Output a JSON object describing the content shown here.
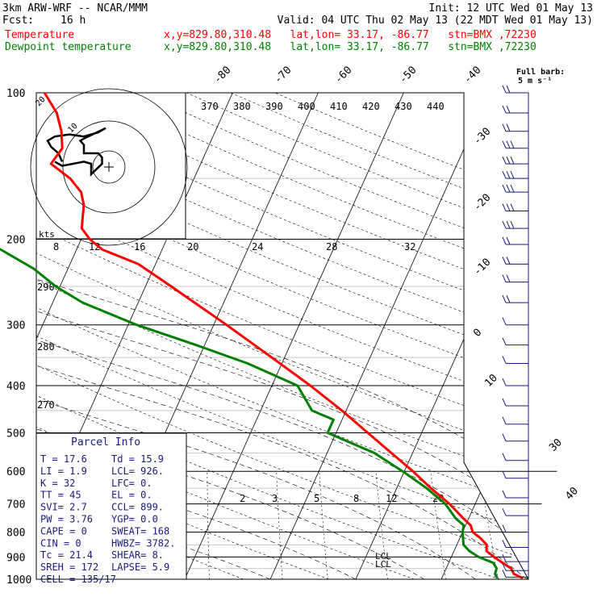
{
  "header": {
    "title": "3km ARW-WRF -- NCAR/MMM",
    "fcst_label": "Fcst:",
    "fcst_value": "16 h",
    "init": "Init: 12 UTC Wed 01 May 13",
    "valid": "Valid: 04 UTC Thu 02 May 13 (22 MDT Wed 01 May 13)",
    "series": [
      {
        "name": "Temperature",
        "info": "x,y=829.80,310.48   lat,lon= 33.17, -86.77   stn=BMX ,72230",
        "color": "#ff0000"
      },
      {
        "name": "Dewpoint temperature",
        "info": "x,y=829.80,310.48   lat,lon= 33.17, -86.77   stn=BMX ,72230",
        "color": "#008000"
      }
    ]
  },
  "barb_key": {
    "title": "Full barb:",
    "value": "5 m s⁻¹"
  },
  "hodograph": {
    "unit_label": "kts",
    "tick_labels": [
      "8",
      "12",
      "16",
      "20",
      "24",
      "28",
      "32"
    ],
    "ring_labels": [
      "10",
      "20"
    ]
  },
  "theta_labels": [
    "370",
    "380",
    "390",
    "400",
    "410",
    "420",
    "430",
    "440"
  ],
  "mixing_ratio_labels": [
    "2",
    "3",
    "5",
    "8",
    "12",
    "20"
  ],
  "theta_e_labels": [
    "290",
    "280",
    "270"
  ],
  "isotherm_labels": [
    "-80",
    "-70",
    "-60",
    "-50",
    "-40",
    "-30",
    "-20",
    "-10",
    "0",
    "10",
    "30",
    "40"
  ],
  "lcl_markers": [
    "LCL",
    "LCL"
  ],
  "parcel_info": {
    "title": "Parcel Info",
    "rows": [
      [
        "T  =     17.6",
        "Td =   15.9"
      ],
      [
        "LI =      1.9",
        "LCL=   926."
      ],
      [
        "K  =       32",
        "LFC=     0."
      ],
      [
        "TT =       45",
        "EL =     0."
      ],
      [
        "SVI=      2.7",
        "CCL=   899."
      ],
      [
        "PW =     3.76",
        "YGP=    0.0"
      ],
      [
        "CAPE =      0",
        "SWEAT=  168"
      ],
      [
        "CIN  =      0",
        "HWBZ= 3782."
      ],
      [
        "Tc =     21.4",
        "SHEAR=   8."
      ],
      [
        "SREH =    172",
        "LAPSE=  5.9"
      ],
      [
        "CELL = 135/17",
        ""
      ]
    ]
  },
  "chart_data": {
    "type": "line",
    "title": "",
    "ylabel": "",
    "xlabel": "",
    "y_scale": "log",
    "ylim": [
      1000,
      100
    ],
    "pressure_levels": [
      100,
      200,
      300,
      400,
      500,
      600,
      700,
      800,
      900,
      1000
    ],
    "series": [
      {
        "name": "Temperature",
        "color": "#ff0000",
        "points": [
          [
            995,
            19.5
          ],
          [
            975,
            18.2
          ],
          [
            950,
            17.6
          ],
          [
            925,
            16.3
          ],
          [
            900,
            15.0
          ],
          [
            875,
            13.8
          ],
          [
            850,
            13.5
          ],
          [
            825,
            12.5
          ],
          [
            800,
            11.2
          ],
          [
            775,
            10.6
          ],
          [
            750,
            9.4
          ],
          [
            700,
            7.0
          ],
          [
            650,
            4.0
          ],
          [
            600,
            1.0
          ],
          [
            550,
            -2.5
          ],
          [
            500,
            -6.3
          ],
          [
            450,
            -10.5
          ],
          [
            400,
            -15.5
          ],
          [
            350,
            -21.5
          ],
          [
            300,
            -28.5
          ],
          [
            250,
            -37.0
          ],
          [
            225,
            -42.0
          ],
          [
            210,
            -47.0
          ],
          [
            200,
            -49.0
          ],
          [
            190,
            -50.5
          ],
          [
            180,
            -51.0
          ],
          [
            170,
            -51.5
          ],
          [
            160,
            -52.5
          ],
          [
            150,
            -54.5
          ],
          [
            140,
            -57.5
          ],
          [
            130,
            -57.0
          ],
          [
            120,
            -58.0
          ],
          [
            110,
            -59.5
          ],
          [
            100,
            -62.0
          ]
        ]
      },
      {
        "name": "Dewpoint temperature",
        "color": "#008000",
        "points": [
          [
            995,
            16.5
          ],
          [
            975,
            16.0
          ],
          [
            950,
            15.9
          ],
          [
            925,
            15.2
          ],
          [
            900,
            13.2
          ],
          [
            875,
            11.8
          ],
          [
            850,
            10.8
          ],
          [
            800,
            10.0
          ],
          [
            775,
            9.8
          ],
          [
            750,
            8.5
          ],
          [
            700,
            6.5
          ],
          [
            650,
            3.5
          ],
          [
            600,
            -0.2
          ],
          [
            550,
            -4.5
          ],
          [
            500,
            -11.0
          ],
          [
            470,
            -11.0
          ],
          [
            450,
            -14.0
          ],
          [
            400,
            -17.0
          ],
          [
            360,
            -24.0
          ],
          [
            330,
            -31.0
          ],
          [
            300,
            -39.0
          ],
          [
            270,
            -46.5
          ],
          [
            250,
            -50.5
          ],
          [
            230,
            -54.0
          ],
          [
            200,
            -61.5
          ],
          [
            185,
            -64.0
          ],
          [
            170,
            -64.5
          ],
          [
            160,
            -66.0
          ],
          [
            150,
            -68.5
          ],
          [
            140,
            -70.0
          ],
          [
            125,
            -74.0
          ],
          [
            110,
            -77.5
          ],
          [
            103,
            -79.5
          ],
          [
            100,
            -79.5
          ]
        ]
      }
    ],
    "hodograph_points": [
      [
        4,
        24
      ],
      [
        6,
        26
      ],
      [
        12,
        24
      ],
      [
        14,
        25
      ],
      [
        14,
        30
      ],
      [
        17,
        25
      ],
      [
        17,
        22
      ],
      [
        16,
        20
      ],
      [
        12,
        20
      ],
      [
        12,
        16
      ],
      [
        11,
        14
      ],
      [
        12,
        13
      ],
      [
        18,
        8
      ],
      [
        16,
        10
      ],
      [
        12,
        12
      ],
      [
        8,
        11
      ],
      [
        4,
        12
      ],
      [
        2,
        14
      ],
      [
        3,
        17
      ],
      [
        5,
        20
      ],
      [
        6,
        24
      ]
    ],
    "wind_profile": [
      {
        "p": 100,
        "speed": 25,
        "dir": "W"
      },
      {
        "p": 110,
        "speed": 25,
        "dir": "W"
      },
      {
        "p": 120,
        "speed": 25,
        "dir": "W"
      },
      {
        "p": 130,
        "speed": 30,
        "dir": "W"
      },
      {
        "p": 140,
        "speed": 30,
        "dir": "W"
      },
      {
        "p": 150,
        "speed": 30,
        "dir": "W"
      },
      {
        "p": 160,
        "speed": 30,
        "dir": "W"
      },
      {
        "p": 175,
        "speed": 30,
        "dir": "W"
      },
      {
        "p": 190,
        "speed": 30,
        "dir": "W"
      },
      {
        "p": 205,
        "speed": 25,
        "dir": "W"
      },
      {
        "p": 225,
        "speed": 25,
        "dir": "W"
      },
      {
        "p": 245,
        "speed": 20,
        "dir": "W"
      },
      {
        "p": 270,
        "speed": 20,
        "dir": "W"
      },
      {
        "p": 300,
        "speed": 15,
        "dir": "WNW"
      },
      {
        "p": 330,
        "speed": 15,
        "dir": "WNW"
      },
      {
        "p": 360,
        "speed": 15,
        "dir": "NW"
      },
      {
        "p": 400,
        "speed": 10,
        "dir": "NW"
      },
      {
        "p": 440,
        "speed": 10,
        "dir": "NW"
      },
      {
        "p": 480,
        "speed": 10,
        "dir": "N"
      },
      {
        "p": 520,
        "speed": 10,
        "dir": "N"
      },
      {
        "p": 570,
        "speed": 5,
        "dir": "N"
      },
      {
        "p": 620,
        "speed": 5,
        "dir": "N"
      },
      {
        "p": 680,
        "speed": 5,
        "dir": "NE"
      },
      {
        "p": 740,
        "speed": 5,
        "dir": "E"
      },
      {
        "p": 800,
        "speed": 5,
        "dir": "E"
      },
      {
        "p": 860,
        "speed": 10,
        "dir": "SE"
      },
      {
        "p": 920,
        "speed": 10,
        "dir": "S"
      },
      {
        "p": 960,
        "speed": 10,
        "dir": "S"
      },
      {
        "p": 990,
        "speed": 10,
        "dir": "S"
      }
    ]
  }
}
